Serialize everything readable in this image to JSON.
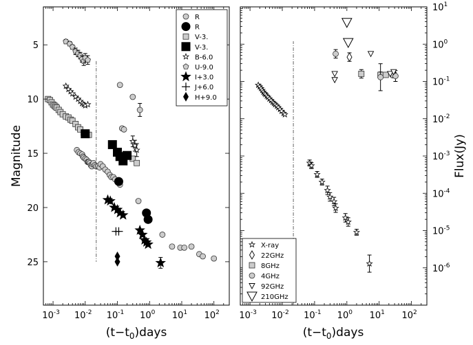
{
  "chart_data": [
    {
      "type": "scatter",
      "panel": "left",
      "xlabel_prefix": "(t−t",
      "xlabel_sub": "0",
      "xlabel_suffix": ")days",
      "ylabel": "Magnitude",
      "xscale": "log",
      "xlim": [
        0.0005,
        300
      ],
      "yscale": "linear",
      "ylim": [
        29,
        1.5
      ],
      "y_inverted": true,
      "xticks": [
        "10",
        "10",
        "10",
        "10",
        "10",
        "10"
      ],
      "xtick_exps": [
        "-3",
        "-2",
        "-1",
        "0",
        "1",
        "2"
      ],
      "xtick_vals": [
        0.001,
        0.01,
        0.1,
        1,
        10,
        100
      ],
      "yticks": [
        "5",
        "10",
        "15",
        "20",
        "25"
      ],
      "ytick_vals": [
        5,
        10,
        15,
        20,
        25
      ],
      "vline_x": 0.022,
      "vline_yrange": [
        6.5,
        25
      ],
      "legend_position": "upper-right",
      "legend": [
        "R",
        "R",
        "V-3.",
        "V-3.",
        "B-6.0",
        "U-9.0",
        "I+3.0",
        "J+6.0",
        "H+9.0"
      ],
      "series": [
        {
          "name": "R",
          "marker": "circle-gray",
          "points": [
            [
              0.0055,
              14.7
            ],
            [
              0.0062,
              14.9
            ],
            [
              0.007,
              15.0
            ],
            [
              0.008,
              15.1
            ],
            [
              0.0085,
              15.3
            ],
            [
              0.009,
              15.4
            ],
            [
              0.01,
              15.5
            ],
            [
              0.011,
              15.6
            ],
            [
              0.0118,
              15.8
            ],
            [
              0.0125,
              15.8
            ],
            [
              0.013,
              15.8
            ],
            [
              0.014,
              15.9
            ],
            [
              0.015,
              16.1
            ],
            [
              0.016,
              16.2
            ],
            [
              0.017,
              16.0
            ],
            [
              0.018,
              15.9
            ],
            [
              0.02,
              16.1
            ],
            [
              0.022,
              16.2
            ],
            [
              0.025,
              16.2
            ],
            [
              0.028,
              16.3
            ],
            [
              0.03,
              16.0
            ],
            [
              0.035,
              16.2
            ],
            [
              0.042,
              16.5
            ],
            [
              0.05,
              16.7
            ],
            [
              0.058,
              17.0
            ],
            [
              0.065,
              17.2
            ],
            [
              0.075,
              17.2
            ],
            [
              0.085,
              17.4
            ],
            [
              0.12,
              8.7
            ],
            [
              0.12,
              17.9
            ],
            [
              0.14,
              12.7
            ],
            [
              0.16,
              12.8
            ],
            [
              0.3,
              9.8
            ],
            [
              0.45,
              19.4
            ],
            [
              0.5,
              11.0
            ],
            [
              2.5,
              22.5
            ],
            [
              5,
              23.6
            ],
            [
              9,
              23.7
            ],
            [
              12,
              23.7
            ],
            [
              20,
              23.6
            ],
            [
              35,
              24.3
            ],
            [
              45,
              24.5
            ],
            [
              100,
              24.7
            ]
          ],
          "yerr": [
            0,
            0,
            0,
            0,
            0,
            0,
            0,
            0,
            0,
            0,
            0,
            0,
            0,
            0,
            0,
            0,
            0,
            0,
            0,
            0,
            0,
            0,
            0,
            0,
            0,
            0,
            0,
            0,
            0,
            0,
            0,
            0,
            0,
            0,
            0.6,
            0,
            0,
            0,
            0,
            0,
            0,
            0,
            0
          ]
        },
        {
          "name": "R",
          "marker": "circle-black",
          "points": [
            [
              0.11,
              17.6
            ],
            [
              0.8,
              20.5
            ],
            [
              0.9,
              21.1
            ]
          ]
        },
        {
          "name": "V-3.",
          "marker": "square-gray",
          "points": [
            [
              0.0007,
              10.0
            ],
            [
              0.0008,
              10.1
            ],
            [
              0.0009,
              10.3
            ],
            [
              0.001,
              10.5
            ],
            [
              0.0011,
              10.6
            ],
            [
              0.0012,
              10.7
            ],
            [
              0.0013,
              10.8
            ],
            [
              0.0015,
              11.0
            ],
            [
              0.0017,
              11.2
            ],
            [
              0.002,
              11.4
            ],
            [
              0.0025,
              11.6
            ],
            [
              0.003,
              11.7
            ],
            [
              0.0035,
              11.9
            ],
            [
              0.004,
              12.0
            ],
            [
              0.005,
              12.3
            ],
            [
              0.006,
              12.6
            ],
            [
              0.007,
              12.8
            ],
            [
              0.009,
              13.1
            ],
            [
              0.011,
              13.3
            ],
            [
              0.013,
              13.3
            ],
            [
              0.3,
              15.5
            ],
            [
              0.4,
              15.9
            ]
          ]
        },
        {
          "name": "V-3.",
          "marker": "square-black",
          "points": [
            [
              0.01,
              13.2
            ],
            [
              0.07,
              14.2
            ],
            [
              0.1,
              14.9
            ],
            [
              0.12,
              15.3
            ],
            [
              0.15,
              15.7
            ],
            [
              0.2,
              15.2
            ]
          ]
        },
        {
          "name": "B-6.0",
          "marker": "star-open",
          "points": [
            [
              0.0025,
              8.8
            ],
            [
              0.003,
              9.1
            ],
            [
              0.0035,
              9.3
            ],
            [
              0.004,
              9.5
            ],
            [
              0.005,
              9.8
            ],
            [
              0.006,
              10.0
            ],
            [
              0.007,
              10.2
            ],
            [
              0.008,
              10.4
            ],
            [
              0.009,
              10.5
            ],
            [
              0.01,
              10.6
            ],
            [
              0.012,
              10.5
            ],
            [
              0.3,
              13.9
            ],
            [
              0.35,
              14.3
            ],
            [
              0.4,
              14.7
            ]
          ],
          "yerr": [
            0,
            0,
            0,
            0,
            0,
            0,
            0,
            0,
            0,
            0,
            0,
            0.5,
            0.5,
            0.6
          ]
        },
        {
          "name": "U-9.0",
          "marker": "pentagon",
          "points": [
            [
              0.0025,
              4.7
            ],
            [
              0.0033,
              4.9
            ],
            [
              0.004,
              5.2
            ],
            [
              0.005,
              5.6
            ],
            [
              0.006,
              5.8
            ],
            [
              0.007,
              6.0
            ],
            [
              0.008,
              6.3
            ],
            [
              0.009,
              6.5
            ],
            [
              0.01,
              6.2
            ],
            [
              0.012,
              6.4
            ]
          ],
          "yerr": [
            0.2,
            0.2,
            0.2,
            0.3,
            0.3,
            0.3,
            0.3,
            0.4,
            0.4,
            0.4
          ]
        },
        {
          "name": "I+3.0",
          "marker": "star-black",
          "points": [
            [
              0.05,
              19.3
            ],
            [
              0.06,
              19.4
            ],
            [
              0.08,
              20.0
            ],
            [
              0.1,
              20.2
            ],
            [
              0.12,
              20.5
            ],
            [
              0.15,
              20.7
            ],
            [
              0.5,
              22.1
            ],
            [
              0.6,
              22.5
            ],
            [
              0.7,
              23.0
            ],
            [
              0.8,
              23.2
            ],
            [
              0.9,
              23.4
            ],
            [
              2.2,
              25.1
            ]
          ],
          "yerr": [
            0,
            0,
            0,
            0,
            0,
            0,
            0,
            0,
            0,
            0,
            0,
            0.5
          ]
        },
        {
          "name": "J+6.0",
          "marker": "plus",
          "points": [
            [
              0.09,
              22.2
            ],
            [
              0.11,
              22.2
            ]
          ]
        },
        {
          "name": "H+9.0",
          "marker": "diamond-black",
          "points": [
            [
              0.1,
              24.5
            ],
            [
              0.1,
              25.0
            ]
          ]
        }
      ]
    },
    {
      "type": "scatter",
      "panel": "right",
      "xlabel_prefix": "(t−t",
      "xlabel_sub": "0",
      "xlabel_suffix": ")days",
      "ylabel": "Flux(Jy)",
      "xscale": "log",
      "xlim": [
        0.0005,
        300
      ],
      "yscale": "log",
      "ylim": [
        1e-07,
        10
      ],
      "xticks": [
        "10",
        "10",
        "10",
        "10",
        "10",
        "10"
      ],
      "xtick_exps": [
        "-3",
        "-2",
        "-1",
        "0",
        "1",
        "2"
      ],
      "xtick_vals": [
        0.001,
        0.01,
        0.1,
        1,
        10,
        100
      ],
      "yticks": [
        "10",
        "10",
        "10",
        "10",
        "10",
        "10",
        "10",
        "10"
      ],
      "ytick_exps": [
        "-6",
        "-5",
        "-4",
        "-3",
        "-2",
        "-1",
        "0",
        "1"
      ],
      "ytick_vals": [
        1e-06,
        1e-05,
        0.0001,
        0.001,
        0.01,
        0.1,
        1,
        10
      ],
      "vline_x": 0.022,
      "vline_yrange": [
        1e-07,
        1.2
      ],
      "legend_position": "lower-left",
      "legend": [
        "X-ray",
        "22GHz",
        "8GHz",
        "4GHz",
        "92GHz",
        "210GHz"
      ],
      "series": [
        {
          "name": "X-ray",
          "marker": "star-open",
          "points": [
            [
              0.0018,
              0.08
            ],
            [
              0.002,
              0.072
            ],
            [
              0.0022,
              0.065
            ],
            [
              0.0024,
              0.058
            ],
            [
              0.0026,
              0.052
            ],
            [
              0.0028,
              0.048
            ],
            [
              0.003,
              0.045
            ],
            [
              0.0033,
              0.041
            ],
            [
              0.0036,
              0.038
            ],
            [
              0.004,
              0.034
            ],
            [
              0.0045,
              0.031
            ],
            [
              0.005,
              0.028
            ],
            [
              0.0055,
              0.026
            ],
            [
              0.006,
              0.024
            ],
            [
              0.0068,
              0.022
            ],
            [
              0.0075,
              0.02
            ],
            [
              0.0085,
              0.018
            ],
            [
              0.0095,
              0.016
            ],
            [
              0.011,
              0.014
            ],
            [
              0.012,
              0.013
            ],
            [
              0.07,
              0.00065
            ],
            [
              0.08,
              0.00055
            ],
            [
              0.12,
              0.00032
            ],
            [
              0.17,
              0.0002
            ],
            [
              0.25,
              0.00012
            ],
            [
              0.3,
              8e-05
            ],
            [
              0.4,
              6e-05
            ],
            [
              0.45,
              4e-05
            ],
            [
              0.9,
              2.2e-05
            ],
            [
              1.1,
              1.7e-05
            ],
            [
              2.0,
              9e-06
            ],
            [
              5,
              1.3e-06
            ]
          ],
          "yerr_factor": [
            1,
            1,
            1,
            1,
            1,
            1,
            1,
            1,
            1,
            1,
            1,
            1,
            1,
            1,
            1,
            1,
            1,
            1,
            1,
            1,
            1.2,
            1.2,
            1.2,
            1.2,
            1.3,
            1.3,
            1.3,
            1.3,
            1.3,
            1.3,
            1.2,
            1.7
          ]
        },
        {
          "name": "22GHz",
          "marker": "diamond-open",
          "points": [
            [
              1.2,
              0.45
            ]
          ],
          "yerr_factor": [
            1.3
          ]
        },
        {
          "name": "8GHz",
          "marker": "square-gray",
          "points": [
            [
              2.8,
              0.16
            ],
            [
              11,
              0.15
            ],
            [
              16,
              0.15
            ],
            [
              28,
              0.15
            ]
          ],
          "yerr_factor": [
            1.3,
            1.2,
            1,
            1.2
          ]
        },
        {
          "name": "4GHz",
          "marker": "circle-gray",
          "points": [
            [
              0.45,
              0.55
            ],
            [
              11,
              0.13
            ],
            [
              32,
              0.14
            ]
          ],
          "yerr_factor": [
            1.3,
            2.3,
            1.4
          ]
        },
        {
          "name": "92GHz",
          "marker": "triangle-down-small",
          "points": [
            [
              0.42,
              0.16
            ],
            [
              0.42,
              0.11
            ],
            [
              5.5,
              0.55
            ],
            [
              22,
              0.16
            ],
            [
              28,
              0.18
            ]
          ]
        },
        {
          "name": "210GHz",
          "marker": "triangle-down-large",
          "points": [
            [
              1.0,
              3.8
            ],
            [
              1.1,
              1.1
            ]
          ]
        }
      ]
    }
  ]
}
